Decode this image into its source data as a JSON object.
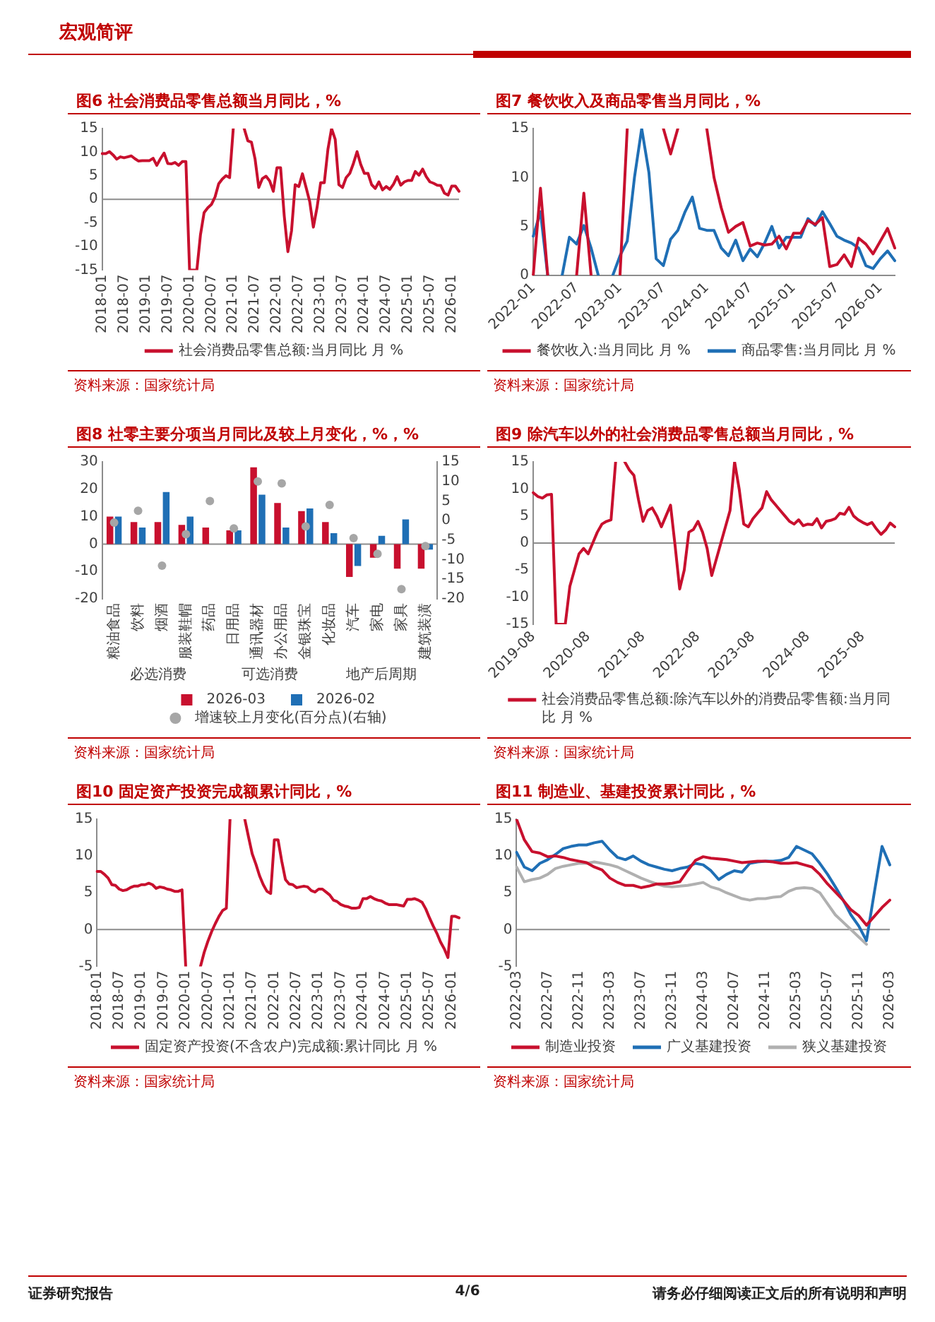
{
  "chart_data": [
    {
      "type": "line",
      "title": "图6 社会消费品零售总额当月同比，%",
      "categories": [
        "2018-01",
        null,
        null,
        null,
        null,
        null,
        "2018-07",
        null,
        null,
        null,
        null,
        null,
        "2019-01",
        null,
        null,
        null,
        null,
        null,
        "2019-07",
        null,
        null,
        null,
        null,
        null,
        "2020-01",
        null,
        null,
        null,
        null,
        null,
        "2020-07",
        null,
        null,
        null,
        null,
        null,
        "2021-01",
        null,
        null,
        null,
        null,
        null,
        "2021-07",
        null,
        null,
        null,
        null,
        null,
        "2022-01",
        null,
        null,
        null,
        null,
        null,
        "2022-07",
        null,
        null,
        null,
        null,
        null,
        "2023-01",
        null,
        null,
        null,
        null,
        null,
        "2023-07",
        null,
        null,
        null,
        null,
        null,
        "2024-01",
        null,
        null,
        null,
        null,
        null,
        "2024-07",
        null,
        null,
        null,
        null,
        null,
        "2025-01",
        null,
        null,
        null,
        null,
        null,
        "2025-07",
        null,
        null,
        null,
        null,
        null,
        "2026-01",
        null,
        null
      ],
      "series": [
        {
          "name": "社会消费品零售总额:当月同比 月 %",
          "color": "#c8102e",
          "values": [
            9.7,
            9.7,
            10.1,
            9.4,
            8.5,
            9.0,
            8.8,
            9.0,
            9.2,
            8.6,
            8.1,
            8.2,
            8.2,
            8.2,
            8.7,
            7.2,
            8.6,
            9.8,
            7.6,
            7.5,
            7.8,
            7.2,
            8.0,
            8.0,
            -15.0,
            -15.0,
            -15.0,
            -7.5,
            -2.8,
            -1.8,
            -1.1,
            0.5,
            3.3,
            4.3,
            5.0,
            4.6,
            15.0,
            null,
            null,
            15.0,
            12.4,
            12.1,
            8.5,
            2.5,
            4.4,
            4.9,
            3.9,
            1.7,
            6.7,
            6.7,
            -3.5,
            -11.1,
            -6.7,
            3.1,
            2.7,
            5.4,
            2.5,
            -0.5,
            -5.9,
            -1.8,
            3.5,
            3.5,
            10.6,
            15.0,
            12.7,
            3.1,
            2.5,
            4.6,
            5.5,
            7.6,
            10.1,
            7.4,
            5.5,
            5.5,
            3.1,
            2.3,
            3.7,
            2.0,
            2.7,
            2.1,
            3.2,
            4.8,
            3.0,
            3.7,
            4.0,
            4.0,
            5.9,
            5.1,
            6.4,
            4.8,
            3.7,
            3.4,
            3.0,
            2.9,
            1.3,
            0.9,
            2.8,
            2.8,
            1.7
          ]
        }
      ],
      "ylim": [
        -15,
        15
      ],
      "yticks": [
        -15,
        -10,
        -5,
        0,
        5,
        10,
        15
      ],
      "legend": "bottom",
      "ref_lines": [
        {
          "axis": "y",
          "value": 0
        }
      ],
      "annotations": [
        "资料来源：国家统计局",
        "宏观简评"
      ]
    },
    {
      "type": "line",
      "title": "图7 餐饮收入及商品零售当月同比，%",
      "categories": [
        "2022-01",
        null,
        null,
        null,
        null,
        null,
        "2022-07",
        null,
        null,
        null,
        null,
        null,
        "2023-01",
        null,
        null,
        null,
        null,
        null,
        "2023-07",
        null,
        null,
        null,
        null,
        null,
        "2024-01",
        null,
        null,
        null,
        null,
        null,
        "2024-07",
        null,
        null,
        null,
        null,
        null,
        "2025-01",
        null,
        null,
        null,
        null,
        null,
        "2025-07",
        null,
        null,
        null,
        null,
        null,
        "2026-01",
        null,
        null
      ],
      "series": [
        {
          "name": "餐饮收入:当月同比 月 %",
          "color": "#c8102e",
          "values": [
            0.0,
            8.9,
            0.0,
            null,
            null,
            null,
            0.0,
            8.4,
            0.0,
            null,
            null,
            null,
            0.0,
            15.0,
            null,
            null,
            null,
            null,
            15.0,
            12.4,
            15.0,
            null,
            null,
            null,
            15.0,
            10.0,
            6.9,
            4.4,
            5.0,
            5.4,
            3.0,
            3.3,
            3.1,
            3.2,
            4.0,
            2.7,
            4.3,
            4.3,
            5.6,
            5.2,
            5.9,
            0.9,
            1.1,
            2.1,
            0.9,
            3.8,
            3.2,
            2.2,
            3.5,
            4.8,
            2.8
          ]
        },
        {
          "name": "商品零售:当月同比 月 %",
          "color": "#1f6fb5",
          "values": [
            4.0,
            6.5,
            0.0,
            null,
            0.0,
            3.9,
            3.2,
            5.1,
            2.8,
            0.0,
            null,
            0.0,
            2.0,
            3.5,
            10.0,
            15.0,
            10.5,
            1.7,
            1.0,
            3.7,
            4.6,
            6.5,
            8.0,
            4.8,
            4.6,
            4.6,
            2.8,
            2.0,
            3.6,
            1.5,
            2.7,
            1.9,
            3.3,
            5.0,
            2.8,
            3.9,
            3.9,
            3.9,
            5.8,
            5.1,
            6.5,
            5.3,
            4.0,
            3.6,
            3.3,
            2.8,
            1.0,
            0.7,
            1.7,
            2.5,
            1.5
          ]
        }
      ],
      "ylim": [
        0,
        15
      ],
      "yticks": [
        0,
        5,
        10,
        15
      ],
      "legend": "bottom",
      "annotations": [
        "资料来源：国家统计局"
      ]
    },
    {
      "type": "bar",
      "title": "图8 社零主要分项当月同比及较上月变化，%，%",
      "categories": [
        "粮油食品",
        "饮料",
        "烟酒",
        "服装鞋帽",
        "药品",
        "日用品",
        "通讯器材",
        "办公用品",
        "金银珠宝",
        "化妆品",
        "汽车",
        "家电",
        "家具",
        "建筑装潢"
      ],
      "series": [
        {
          "name": "2026-03",
          "color": "#c8102e",
          "values": [
            10,
            8,
            8,
            7,
            6,
            5,
            28,
            15,
            12,
            8,
            -12,
            -5,
            -9,
            -9
          ]
        },
        {
          "name": "2026-02",
          "color": "#1f6fb5",
          "values": [
            10,
            6,
            19,
            10,
            null,
            5,
            18,
            6,
            13,
            4,
            -8,
            3,
            9,
            -2
          ]
        },
        {
          "type": "scatter",
          "name": "增速较上月变化(百分点)(右轴)",
          "color": "#a6a6a6",
          "axis": "y2",
          "x": [
            "粮油食品",
            "饮料",
            "烟酒",
            "服装鞋帽",
            "药品",
            "日用品",
            "通讯器材",
            "办公用品",
            "金银珠宝",
            "化妆品",
            "汽车",
            "家电",
            "家具",
            "建筑装潢"
          ],
          "values": [
            -0.5,
            2.5,
            -11.5,
            -3.5,
            5,
            -2,
            10,
            9.5,
            -1.5,
            4,
            -4.5,
            -8.5,
            -17.5,
            -6.5
          ]
        }
      ],
      "ylim": [
        -20,
        30
      ],
      "yticks": [
        -20,
        -10,
        0,
        10,
        20,
        30
      ],
      "y2lim": [
        -20,
        15
      ],
      "y2ticks": [
        -20,
        -15,
        -10,
        -5,
        0,
        5,
        10,
        15
      ],
      "marker": "circle",
      "legend": "bottom",
      "ref_lines": [
        {
          "axis": "y",
          "value": 0
        }
      ],
      "annotations": [
        "资料来源：国家统计局",
        "必选消费",
        "可选消费",
        "地产后周期"
      ]
    },
    {
      "type": "line",
      "title": "图9 除汽车以外的社会消费品零售总额当月同比，%",
      "categories": [
        "2019-08",
        null,
        null,
        null,
        null,
        null,
        null,
        null,
        null,
        null,
        null,
        null,
        "2020-08",
        null,
        null,
        null,
        null,
        null,
        null,
        null,
        null,
        null,
        null,
        null,
        "2021-08",
        null,
        null,
        null,
        null,
        null,
        null,
        null,
        null,
        null,
        null,
        null,
        "2022-08",
        null,
        null,
        null,
        null,
        null,
        null,
        null,
        null,
        null,
        null,
        null,
        "2023-08",
        null,
        null,
        null,
        null,
        null,
        null,
        null,
        null,
        null,
        null,
        null,
        "2024-08",
        null,
        null,
        null,
        null,
        null,
        null,
        null,
        null,
        null,
        null,
        null,
        "2025-08",
        null,
        null,
        null,
        null,
        null,
        null,
        null
      ],
      "series": [
        {
          "name": "社会消费品零售总额:除汽车以外的消费品零售额:当月同比 月 %",
          "color": "#c8102e",
          "values": [
            9.3,
            8.6,
            8.3,
            8.9,
            9.0,
            -15.0,
            -15.0,
            -15.0,
            -8.0,
            -5.0,
            -2.0,
            -1.0,
            -2.0,
            0.0,
            2.0,
            3.5,
            4.0,
            4.3,
            15.0,
            null,
            15.0,
            13.5,
            12.5,
            8.0,
            4.0,
            6.0,
            6.5,
            5.0,
            3.0,
            5.0,
            7.0,
            -0.5,
            -8.5,
            -5.0,
            2.0,
            2.5,
            4.0,
            2.0,
            -1.0,
            -6.0,
            -3.0,
            0.0,
            3.0,
            6.0,
            15.0,
            10.0,
            3.5,
            3.0,
            4.5,
            5.5,
            6.5,
            9.5,
            8.0,
            7.0,
            6.0,
            5.0,
            4.0,
            3.5,
            4.3,
            3.2,
            3.5,
            3.4,
            4.5,
            2.8,
            4.0,
            4.2,
            4.5,
            5.5,
            5.3,
            6.6,
            5.0,
            4.3,
            3.8,
            3.4,
            3.8,
            2.6,
            1.6,
            2.4,
            3.7,
            3.0
          ]
        }
      ],
      "ylim": [
        -15,
        15
      ],
      "yticks": [
        -15,
        -10,
        -5,
        0,
        5,
        10,
        15
      ],
      "legend": "bottom",
      "ref_lines": [
        {
          "axis": "y",
          "value": 0
        }
      ],
      "annotations": [
        "资料来源：国家统计局"
      ]
    },
    {
      "type": "line",
      "title": "图10 固定资产投资完成额累计同比，%",
      "categories": [
        "2018-01",
        null,
        null,
        null,
        null,
        null,
        "2018-07",
        null,
        null,
        null,
        null,
        null,
        "2019-01",
        null,
        null,
        null,
        null,
        null,
        "2019-07",
        null,
        null,
        null,
        null,
        null,
        "2020-01",
        null,
        null,
        null,
        null,
        null,
        "2020-07",
        null,
        null,
        null,
        null,
        null,
        "2021-01",
        null,
        null,
        null,
        null,
        null,
        "2021-07",
        null,
        null,
        null,
        null,
        null,
        "2022-01",
        null,
        null,
        null,
        null,
        null,
        "2022-07",
        null,
        null,
        null,
        null,
        null,
        "2023-01",
        null,
        null,
        null,
        null,
        null,
        "2023-07",
        null,
        null,
        null,
        null,
        null,
        "2024-01",
        null,
        null,
        null,
        null,
        null,
        "2024-07",
        null,
        null,
        null,
        null,
        null,
        "2025-01",
        null,
        null,
        null,
        null,
        null,
        "2025-07",
        null,
        null,
        null,
        null,
        null,
        "2026-01",
        null,
        null
      ],
      "series": [
        {
          "name": "固定资产投资(不含农户)完成额:累计同比 月 %",
          "color": "#c8102e",
          "values": [
            7.9,
            7.9,
            7.5,
            7.0,
            6.1,
            6.0,
            5.5,
            5.3,
            5.4,
            5.7,
            5.9,
            5.9,
            6.1,
            6.1,
            6.3,
            6.1,
            5.6,
            5.8,
            5.7,
            5.5,
            5.4,
            5.2,
            5.2,
            5.4,
            -5.0,
            null,
            null,
            null,
            -5.0,
            -3.1,
            -1.6,
            -0.3,
            0.8,
            1.8,
            2.6,
            2.9,
            15.0,
            null,
            null,
            null,
            15.0,
            12.6,
            10.3,
            8.9,
            7.3,
            6.1,
            5.2,
            4.9,
            12.2,
            12.2,
            9.3,
            6.8,
            6.2,
            6.1,
            5.7,
            5.8,
            5.9,
            5.8,
            5.3,
            5.1,
            5.5,
            5.5,
            5.1,
            4.7,
            4.0,
            3.8,
            3.4,
            3.2,
            3.1,
            2.9,
            2.9,
            3.0,
            4.2,
            4.2,
            4.5,
            4.2,
            4.0,
            3.9,
            3.6,
            3.4,
            3.4,
            3.4,
            3.3,
            3.2,
            4.1,
            4.1,
            4.2,
            4.0,
            3.7,
            2.8,
            1.6,
            0.5,
            -0.5,
            -1.7,
            -2.6,
            -3.8,
            1.8,
            1.8,
            1.6
          ]
        }
      ],
      "ylim": [
        -5,
        15
      ],
      "yticks": [
        -5,
        0,
        5,
        10,
        15
      ],
      "legend": "bottom",
      "ref_lines": [
        {
          "axis": "y",
          "value": 0
        }
      ],
      "annotations": [
        "资料来源：国家统计局"
      ]
    },
    {
      "type": "line",
      "title": "图11 制造业、基建投资累计同比，%",
      "categories": [
        "2022-03",
        null,
        null,
        null,
        "2022-07",
        null,
        null,
        null,
        "2022-11",
        null,
        null,
        null,
        "2023-03",
        null,
        null,
        null,
        "2023-07",
        null,
        null,
        null,
        "2023-11",
        null,
        null,
        null,
        "2024-03",
        null,
        null,
        null,
        "2024-07",
        null,
        null,
        null,
        "2024-11",
        null,
        null,
        null,
        "2025-03",
        null,
        null,
        null,
        "2025-07",
        null,
        null,
        null,
        "2025-11",
        null,
        null,
        null,
        "2026-03"
      ],
      "series": [
        {
          "name": "制造业投资",
          "color": "#c8102e",
          "values": [
            15.0,
            12.2,
            10.6,
            10.4,
            9.9,
            10.0,
            9.8,
            9.5,
            9.3,
            9.1,
            8.5,
            8.1,
            7.0,
            6.4,
            6.0,
            6.0,
            5.7,
            5.9,
            6.2,
            6.2,
            6.3,
            6.5,
            8.0,
            9.4,
            9.9,
            9.7,
            9.6,
            9.5,
            9.3,
            9.1,
            9.2,
            9.3,
            9.3,
            9.2,
            9.0,
            9.0,
            9.1,
            8.8,
            8.5,
            7.5,
            6.2,
            5.1,
            4.0,
            2.7,
            1.9,
            0.6,
            1.8,
            3.0,
            4.0
          ]
        },
        {
          "name": "广义基建投资",
          "color": "#1f6fb5",
          "values": [
            10.5,
            8.5,
            8.0,
            9.0,
            9.5,
            10.2,
            11.0,
            11.3,
            11.5,
            11.5,
            11.8,
            12.0,
            10.8,
            9.8,
            9.5,
            10.0,
            9.3,
            8.8,
            8.5,
            8.2,
            8.0,
            8.3,
            8.5,
            9.0,
            8.8,
            8.0,
            6.8,
            7.5,
            8.0,
            7.8,
            9.0,
            9.2,
            9.3,
            9.3,
            9.4,
            9.8,
            11.3,
            10.8,
            10.3,
            9.0,
            7.5,
            5.8,
            4.0,
            2.0,
            0.5,
            -1.5,
            5.0,
            11.3,
            8.8
          ]
        },
        {
          "name": "狭义基建投资",
          "color": "#b0b0b0",
          "values": [
            8.5,
            6.5,
            6.8,
            7.0,
            7.5,
            8.3,
            8.6,
            8.8,
            9.0,
            9.0,
            9.2,
            9.0,
            8.8,
            8.5,
            8.0,
            7.5,
            7.0,
            6.6,
            6.2,
            5.9,
            5.8,
            5.9,
            6.0,
            6.2,
            6.4,
            5.8,
            5.5,
            5.0,
            4.6,
            4.2,
            4.0,
            4.2,
            4.2,
            4.4,
            4.5,
            5.2,
            5.6,
            5.7,
            5.6,
            5.0,
            3.5,
            2.0,
            1.0,
            0.0,
            -1.0,
            -2.0,
            null,
            null,
            null
          ]
        }
      ],
      "ylim": [
        -5,
        15
      ],
      "yticks": [
        -5,
        0,
        5,
        10,
        15
      ],
      "legend": "bottom",
      "ref_lines": [
        {
          "axis": "y",
          "value": 0
        }
      ],
      "annotations": [
        "资料来源：国家统计局",
        "证券研究报告",
        "4/6",
        "请务必仔细阅读正文后的所有说明和声明"
      ]
    }
  ]
}
